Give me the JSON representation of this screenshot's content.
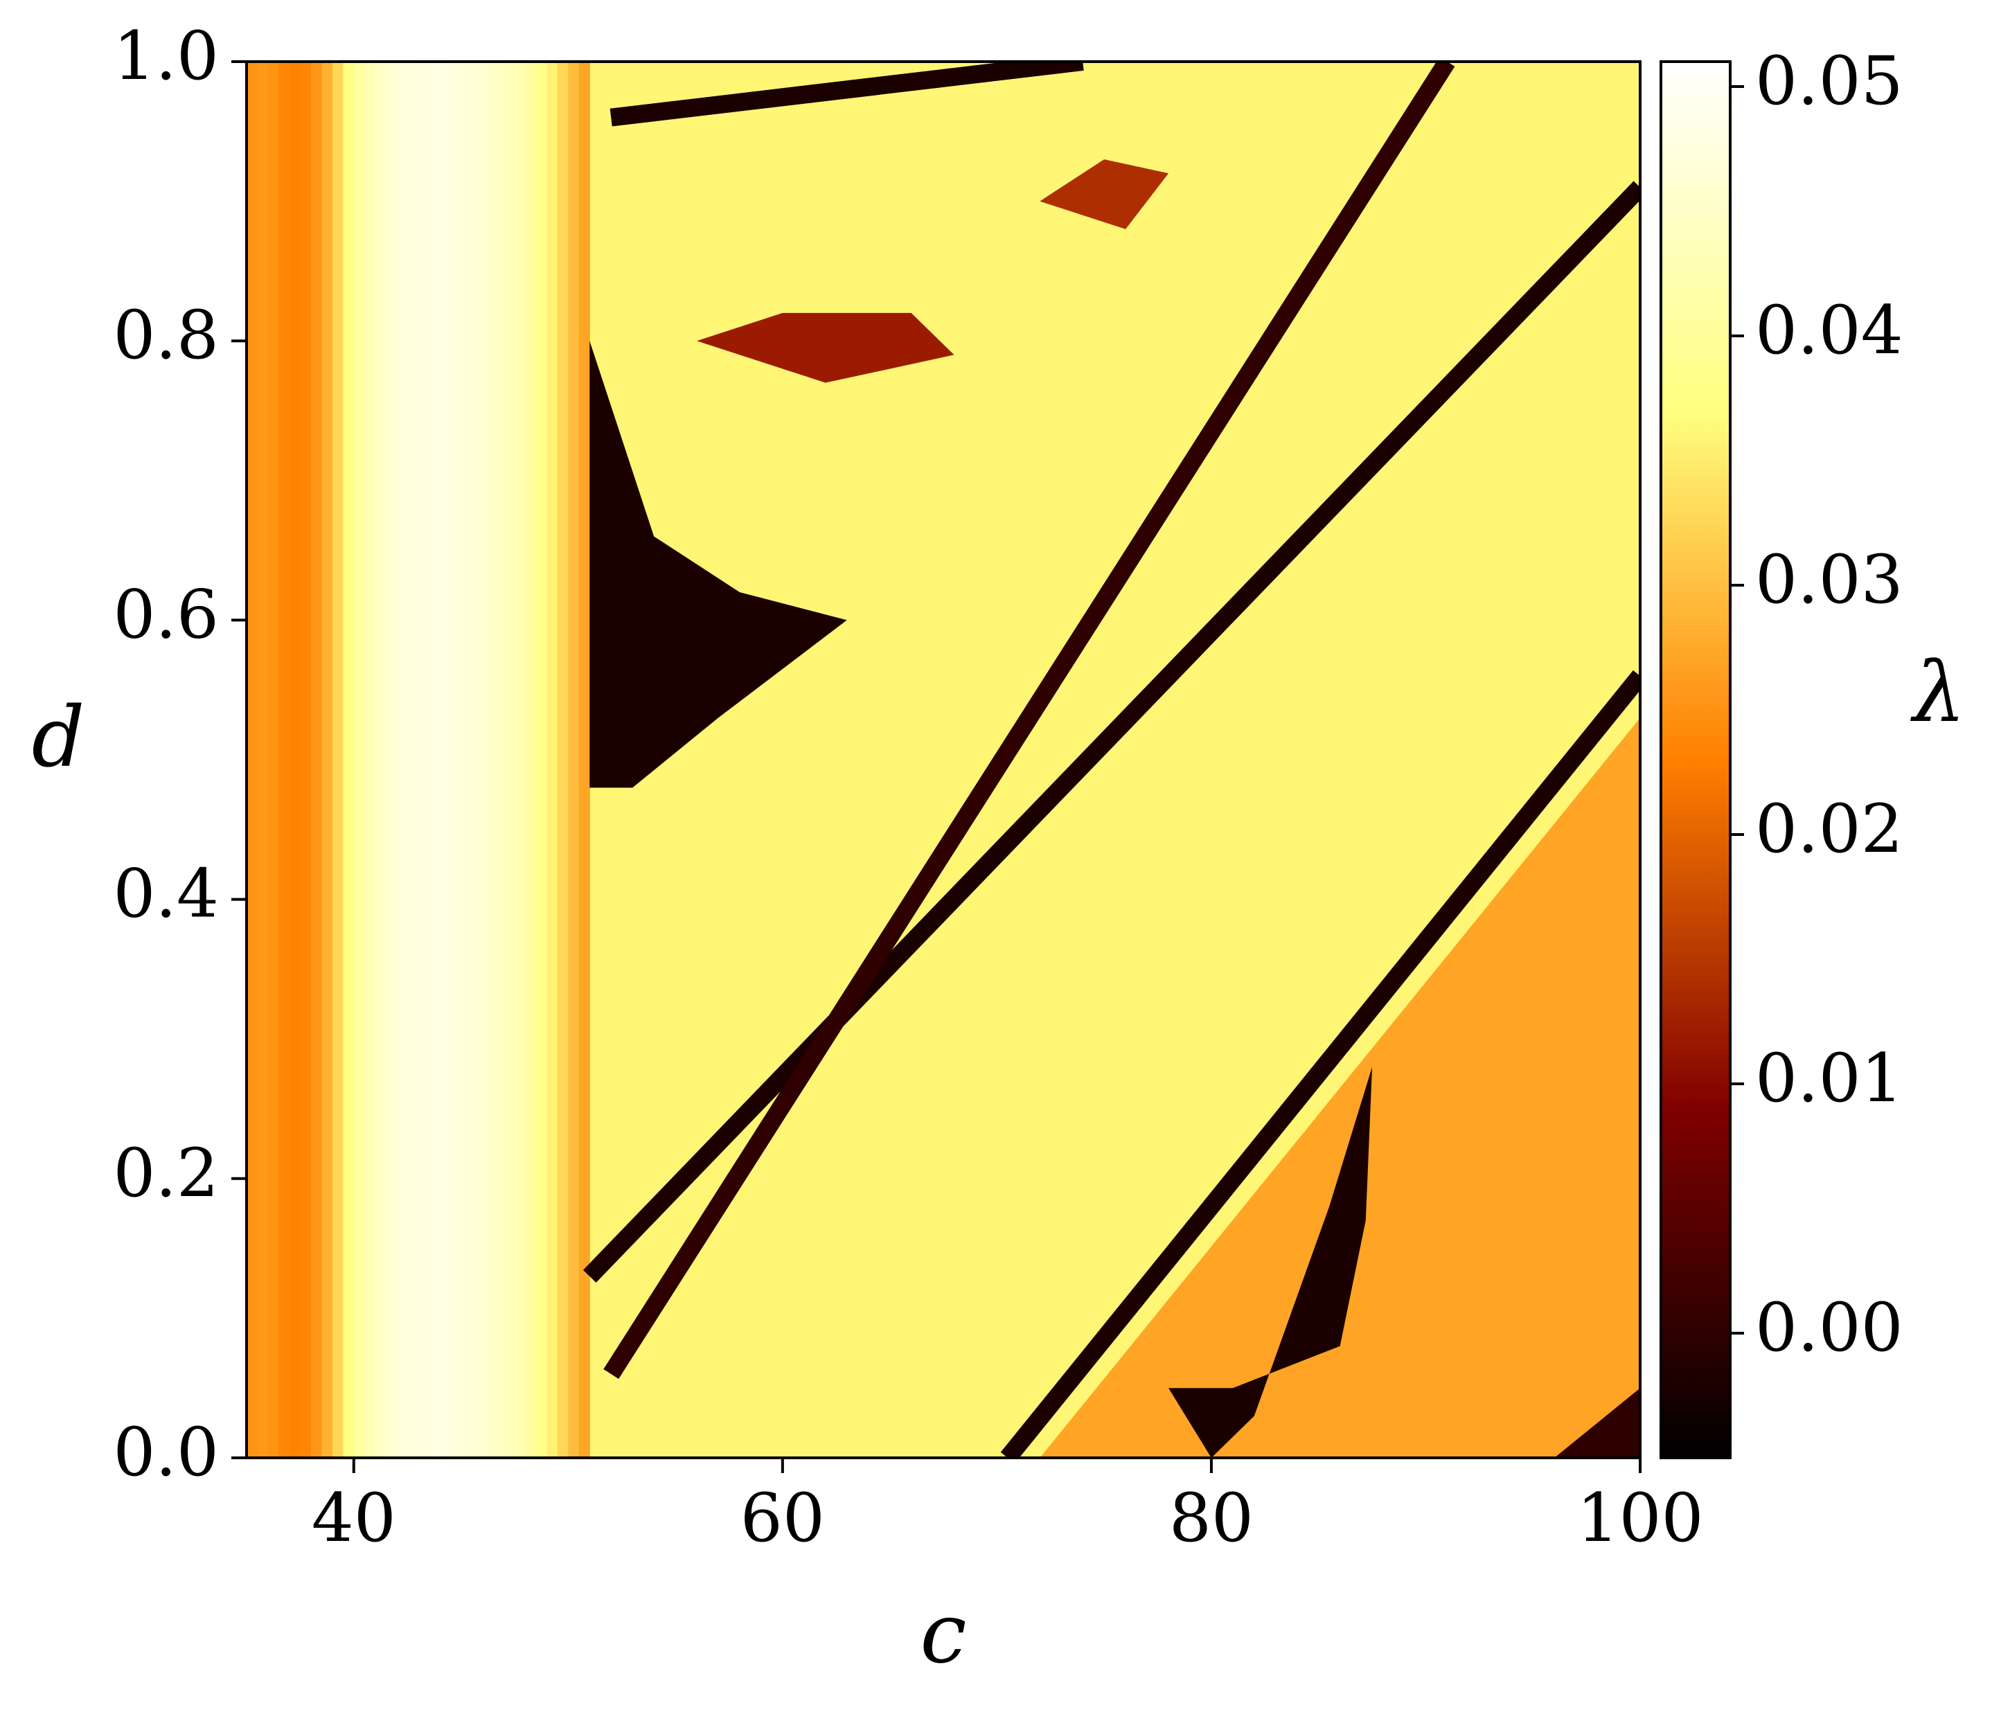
{
  "chart_data": {
    "type": "heatmap",
    "title": "",
    "xlabel": "c",
    "ylabel": "d",
    "colorbar_label": "λ",
    "xlim": [
      35,
      100
    ],
    "ylim": [
      0.0,
      1.0
    ],
    "clim": [
      -0.005,
      0.051
    ],
    "colormap": "afmhot",
    "x_ticks": [
      {
        "value": 40,
        "label": "40"
      },
      {
        "value": 60,
        "label": "60"
      },
      {
        "value": 80,
        "label": "80"
      },
      {
        "value": 100,
        "label": "100"
      }
    ],
    "y_ticks": [
      {
        "value": 0.0,
        "label": "0.0"
      },
      {
        "value": 0.2,
        "label": "0.2"
      },
      {
        "value": 0.4,
        "label": "0.4"
      },
      {
        "value": 0.6,
        "label": "0.6"
      },
      {
        "value": 0.8,
        "label": "0.8"
      },
      {
        "value": 1.0,
        "label": "1.0"
      }
    ],
    "colorbar_ticks": [
      {
        "value": 0.0,
        "label": "0.00"
      },
      {
        "value": 0.01,
        "label": "0.01"
      },
      {
        "value": 0.02,
        "label": "0.02"
      },
      {
        "value": 0.03,
        "label": "0.03"
      },
      {
        "value": 0.04,
        "label": "0.04"
      },
      {
        "value": 0.05,
        "label": "0.05"
      }
    ],
    "regions": {
      "left_band": {
        "c_range": [
          35,
          51
        ],
        "lambda_profile_c": [
          35,
          36,
          37,
          38,
          39,
          40,
          42,
          44,
          46,
          48,
          49,
          50,
          51
        ],
        "lambda_profile": [
          0.025,
          0.026,
          0.023,
          0.024,
          0.03,
          0.04,
          0.047,
          0.048,
          0.046,
          0.042,
          0.037,
          0.031,
          0.026
        ]
      },
      "background_lambda": 0.036,
      "dark_stripes": [
        {
          "from": [
            51,
            0.13
          ],
          "to": [
            100,
            0.91
          ],
          "lambda": -0.002
        },
        {
          "from": [
            52,
            0.06
          ],
          "to": [
            91,
            1.0
          ],
          "lambda": 0.0
        },
        {
          "from": [
            70.5,
            0.0
          ],
          "to": [
            100,
            0.56
          ],
          "lambda": -0.002
        },
        {
          "from": [
            52,
            0.96
          ],
          "to": [
            74,
            1.0
          ],
          "lambda": -0.002
        }
      ],
      "dark_regions": [
        {
          "name": "lower-left wedge",
          "polygon": [
            [
              51,
              0.48
            ],
            [
              51,
              0.8
            ],
            [
              54,
              0.66
            ],
            [
              58,
              0.62
            ],
            [
              63,
              0.6
            ],
            [
              57,
              0.53
            ],
            [
              53,
              0.48
            ]
          ],
          "lambda": -0.002
        },
        {
          "name": "bottom wedge",
          "polygon": [
            [
              78,
              0.05
            ],
            [
              80,
              0.0
            ],
            [
              82,
              0.03
            ],
            [
              85.5,
              0.18
            ],
            [
              87.5,
              0.28
            ],
            [
              87.2,
              0.17
            ],
            [
              86,
              0.08
            ],
            [
              81,
              0.05
            ]
          ],
          "lambda": -0.002
        },
        {
          "name": "bottom-right corner",
          "polygon": [
            [
              96,
              0.0
            ],
            [
              100,
              0.0
            ],
            [
              100,
              0.05
            ]
          ],
          "lambda": 0.0
        }
      ],
      "dim_regions": [
        {
          "name": "lower-right plateau",
          "polygon": [
            [
              65,
              0.0
            ],
            [
              100,
              0.0
            ],
            [
              100,
              0.53
            ],
            [
              72,
              0.0
            ]
          ],
          "lambda": 0.027
        },
        {
          "name": "upper arc",
          "polygon": [
            [
              56,
              0.8
            ],
            [
              62,
              0.77
            ],
            [
              68,
              0.79
            ],
            [
              66,
              0.82
            ],
            [
              60,
              0.82
            ]
          ],
          "lambda": 0.012
        },
        {
          "name": "upper loop",
          "polygon": [
            [
              72,
              0.9
            ],
            [
              75,
              0.93
            ],
            [
              78,
              0.92
            ],
            [
              76,
              0.88
            ]
          ],
          "lambda": 0.014
        }
      ]
    }
  }
}
